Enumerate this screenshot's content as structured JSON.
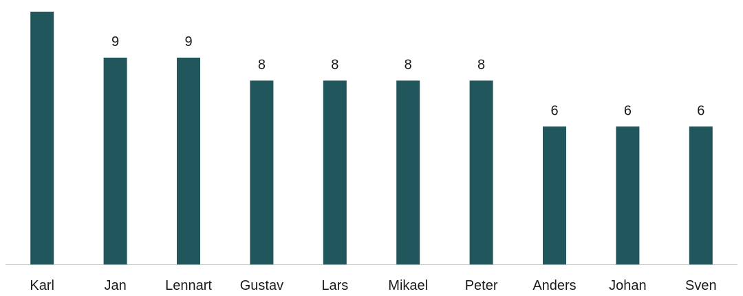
{
  "chart_data": {
    "type": "bar",
    "categories": [
      "Karl",
      "Jan",
      "Lennart",
      "Gustav",
      "Lars",
      "Mikael",
      "Peter",
      "Anders",
      "Johan",
      "Sven"
    ],
    "values": [
      11,
      9,
      9,
      8,
      8,
      8,
      8,
      6,
      6,
      6
    ],
    "value_labels": [
      "",
      "9",
      "9",
      "8",
      "8",
      "8",
      "8",
      "6",
      "6",
      "6"
    ],
    "ylim": [
      0,
      11
    ],
    "title": "",
    "xlabel": "",
    "ylabel": "",
    "grid": false,
    "legend": "none",
    "bar_color": "#20565c",
    "axis_color": "#bfbfbf"
  }
}
